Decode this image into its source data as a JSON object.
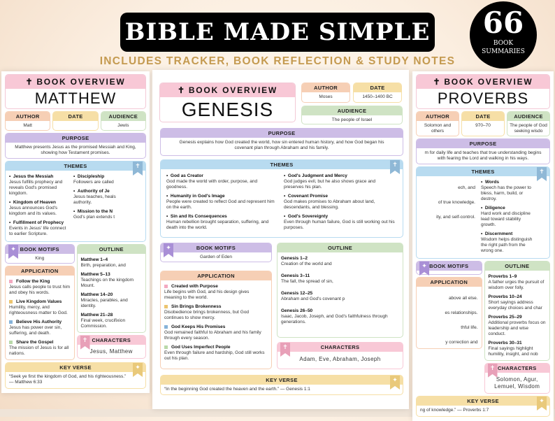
{
  "banner": {
    "title": "BIBLE MADE SIMPLE",
    "subtitle": "INCLUDES TRACKER, BOOK REFLECTION & STUDY NOTES"
  },
  "badge": {
    "number": "66",
    "line1": "BOOK",
    "line2": "SUMMARIES"
  },
  "labels": {
    "overview": "BOOK OVERVIEW",
    "author": "AUTHOR",
    "date": "DATE",
    "audience": "AUDIENCE",
    "purpose": "PURPOSE",
    "themes": "THEMES",
    "motifs": "BOOK MOTIFS",
    "application": "APPLICATION",
    "outline": "OUTLINE",
    "characters": "CHARACTERS",
    "key_verse": "KEY VERSE"
  },
  "colors": {
    "pink": "#f8c8d6",
    "peach": "#f6cfb5",
    "yellow": "#f6dfa6",
    "green": "#cfe3c4",
    "lavender": "#cdbde6",
    "blue": "#b8dbf0"
  },
  "pages": [
    {
      "book": "MATTHEW",
      "author": "Matt",
      "date": "",
      "audience": "Jewis",
      "purpose": "Matthew presents Jesus as the promised Messiah and King, showing how Testament promises.",
      "themes": [
        {
          "title": "Jesus the Messiah",
          "text": "Jesus fulfills prophecy and reveals God's promised kingdom."
        },
        {
          "title": "Kingdom of Heaven",
          "text": "Jesus announces God's kingdom and its values."
        },
        {
          "title": "Fulfillment of Prophecy",
          "text": "Events in Jesus' life connect to earlier Scripture."
        },
        {
          "title": "Discipleship",
          "text": "Followers are called"
        },
        {
          "title": "Authority of Je",
          "text": "Jesus teaches, heals authority."
        },
        {
          "title": "Mission to the N",
          "text": "God's plan extends t"
        }
      ],
      "motifs": "King",
      "application": [
        {
          "title": "Follow the King",
          "text": "Jesus calls people to trust him and obey his words."
        },
        {
          "title": "Live Kingdom Values",
          "text": "Humility, mercy, and righteousness matter to God."
        },
        {
          "title": "Believe His Authority",
          "text": "Jesus has power over sin, suffering, and death."
        },
        {
          "title": "Share the Gospel",
          "text": "The mission of Jesus is for all nations."
        }
      ],
      "outline": [
        {
          "ref": "Matthew 1–4",
          "text": "Birth, preparation, and"
        },
        {
          "ref": "Matthew 5–13",
          "text": "Teachings on the kingdom Mount."
        },
        {
          "ref": "Matthew 14–20",
          "text": "Miracles, parables, and identity."
        },
        {
          "ref": "Matthew 21–28",
          "text": "Final week, crucifixion Commission."
        }
      ],
      "characters": "Jesus, Matthew",
      "key_verse": "“Seek ye first the kingdom of God, and his righteousness.” — Matthew 6:33"
    },
    {
      "book": "GENESIS",
      "author": "Moses",
      "date": "1450–1400 BC",
      "audience": "The people of Israel",
      "purpose": "Genesis explains how God created the world, how sin entered human history, and how God began his covenant plan through Abraham and his family.",
      "themes": [
        {
          "title": "God as Creator",
          "text": "God made the world with order, purpose, and goodness."
        },
        {
          "title": "Humanity in God's Image",
          "text": "People were created to reflect God and represent him on the earth."
        },
        {
          "title": "Sin and Its Consequences",
          "text": "Human rebellion brought separation, suffering, and death into the world."
        },
        {
          "title": "God's Judgment and Mercy",
          "text": "God judges evil, but he also shows grace and preserves his plan."
        },
        {
          "title": "Covenant Promise",
          "text": "God makes promises to Abraham about land, descendants, and blessing."
        },
        {
          "title": "God's Sovereignty",
          "text": "Even through human failure, God is still working out his purposes."
        }
      ],
      "motifs": "Garden of Eden",
      "application": [
        {
          "title": "Created with Purpose",
          "text": "Life begins with God, and his design gives meaning to the world."
        },
        {
          "title": "Sin Brings Brokenness",
          "text": "Disobedience brings brokenness, but God continues to show mercy."
        },
        {
          "title": "God Keeps His Promises",
          "text": "God remained faithful to Abraham and his family through every season."
        },
        {
          "title": "God Uses Imperfect People",
          "text": "Even through failure and hardship, God still works out his plan."
        }
      ],
      "outline": [
        {
          "ref": "Genesis 1–2",
          "text": "Creation of the world and"
        },
        {
          "ref": "Genesis 3–11",
          "text": "The fall, the spread of sin,"
        },
        {
          "ref": "Genesis 12–25",
          "text": "Abraham and God's covenant p"
        },
        {
          "ref": "Genesis 26–50",
          "text": "Isaac, Jacob, Joseph, and God's faithfulness through generations."
        }
      ],
      "characters": "Adam, Eve, Abraham, Joseph",
      "key_verse": "“In the beginning God created the heaven and the earth.” — Genesis 1:1"
    },
    {
      "book": "PROVERBS",
      "author": "Solomon and others",
      "date": "970–70",
      "audience": "The people of God seeking wisdo",
      "purpose": "m for daily life and teaches that true understanding begins with fearing the Lord and walking in his ways.",
      "themes": [
        {
          "title": "",
          "text": "ech, and"
        },
        {
          "title": "",
          "text": "of true knowledge."
        },
        {
          "title": "",
          "text": "ity, and self-control."
        },
        {
          "title": "Words",
          "text": "Speech has the power to bless, harm, build, or destroy."
        },
        {
          "title": "Diligence",
          "text": "Hard work and discipline lead toward stability growth."
        },
        {
          "title": "Discernment",
          "text": "Wisdom helps distinguish the right path from the wrong one."
        }
      ],
      "motifs": "",
      "application": [
        {
          "title": "",
          "text": "above all else."
        },
        {
          "title": "",
          "text": "es relationships."
        },
        {
          "title": "",
          "text": "thful life."
        },
        {
          "title": "",
          "text": "y correction and"
        }
      ],
      "outline": [
        {
          "ref": "Proverbs 1–9",
          "text": "A father urges the pursuit of wisdom over folly."
        },
        {
          "ref": "Proverbs 10–24",
          "text": "Short sayings address everyday choices and char"
        },
        {
          "ref": "Proverbs 25–29",
          "text": "Additional proverbs focus on leadership and wise conduct."
        },
        {
          "ref": "Proverbs 30–31",
          "text": "Final sayings highlight humility, insight, and nob"
        }
      ],
      "characters": "Solomon, Agur, Lemuel, Wisdom",
      "key_verse": "ng of knowledge.” — Proverbs 1:7"
    }
  ]
}
